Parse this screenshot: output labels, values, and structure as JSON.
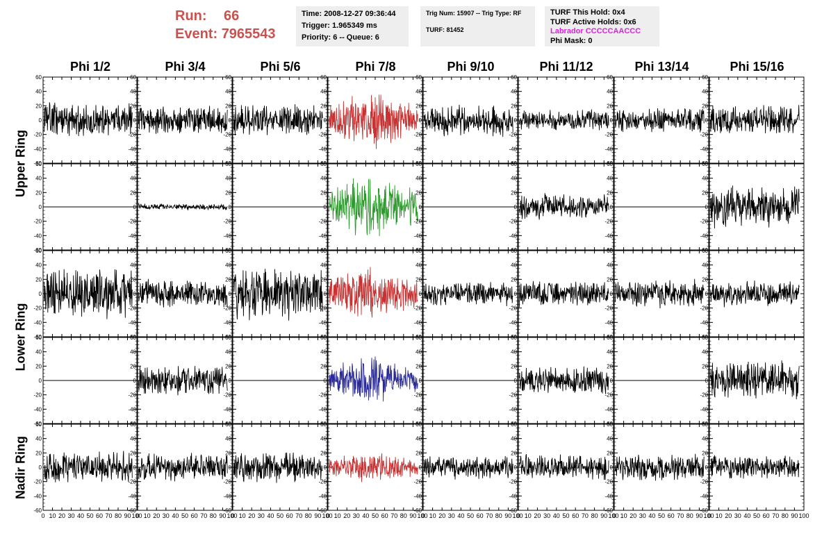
{
  "header": {
    "run_label": "Run:",
    "run_value": "66",
    "event_label": "Event:",
    "event_value": "7965543"
  },
  "info_time": {
    "time": "Time: 2008-12-27 09:36:44",
    "trigger": "Trigger: 1.965349 ms",
    "priority": "Priority: 6 -- Queue: 6"
  },
  "info_trig": {
    "trig": "Trig Num: 15907 -- Trig Type: RF",
    "turf": "TURF: 81452"
  },
  "info_turf": {
    "this_hold": "TURF This Hold: 0x4",
    "active_holds": "TURF Active Holds: 0x6",
    "labrador": "Labrador CCCCCAACCC",
    "phi_mask": "Phi Mask: 0"
  },
  "colors": {
    "black": "#000000",
    "red": "#c83232",
    "green": "#2a9a2a",
    "blue": "#2a2a96",
    "run_text": "#c9524f",
    "labrador": "#e020e0"
  },
  "chart_data": {
    "type": "line",
    "columns": [
      "Phi 1/2",
      "Phi 3/4",
      "Phi 5/6",
      "Phi 7/8",
      "Phi 9/10",
      "Phi 11/12",
      "Phi 13/14",
      "Phi 15/16"
    ],
    "row_groups": [
      {
        "label": "Upper Ring",
        "rows": [
          0,
          1
        ]
      },
      {
        "label": "Lower Ring",
        "rows": [
          2,
          3
        ]
      },
      {
        "label": "Nadir Ring",
        "rows": [
          4
        ]
      }
    ],
    "xlim": [
      0,
      100
    ],
    "ylim": [
      -60,
      60
    ],
    "x_ticks": [
      0,
      10,
      20,
      30,
      40,
      50,
      60,
      70,
      80,
      90,
      100
    ],
    "y_ticks": [
      -60,
      -40,
      -20,
      0,
      20,
      40,
      60
    ],
    "panels": [
      [
        {
          "color": "black",
          "amp": 16,
          "seed": 11
        },
        {
          "color": "black",
          "amp": 14,
          "seed": 12
        },
        {
          "color": "black",
          "amp": 15,
          "seed": 13
        },
        {
          "color": "red",
          "amp": 26,
          "seed": 14,
          "env": true
        },
        {
          "color": "black",
          "amp": 15,
          "seed": 15
        },
        {
          "color": "black",
          "amp": 10,
          "seed": 16
        },
        {
          "color": "black",
          "amp": 12,
          "seed": 17
        },
        {
          "color": "black",
          "amp": 14,
          "seed": 18
        }
      ],
      [
        {
          "color": "black",
          "amp": 0,
          "seed": 21
        },
        {
          "color": "black",
          "amp": 3,
          "seed": 22
        },
        {
          "color": "black",
          "amp": 0,
          "seed": 23
        },
        {
          "color": "green",
          "amp": 30,
          "seed": 24,
          "env": true
        },
        {
          "color": "black",
          "amp": 0,
          "seed": 25
        },
        {
          "color": "black",
          "amp": 12,
          "seed": 26
        },
        {
          "color": "black",
          "amp": 0,
          "seed": 27
        },
        {
          "color": "black",
          "amp": 20,
          "seed": 28
        }
      ],
      [
        {
          "color": "black",
          "amp": 24,
          "seed": 31
        },
        {
          "color": "black",
          "amp": 13,
          "seed": 32
        },
        {
          "color": "black",
          "amp": 24,
          "seed": 33
        },
        {
          "color": "red",
          "amp": 24,
          "seed": 34,
          "env": true
        },
        {
          "color": "black",
          "amp": 12,
          "seed": 35
        },
        {
          "color": "black",
          "amp": 12,
          "seed": 36
        },
        {
          "color": "black",
          "amp": 13,
          "seed": 37
        },
        {
          "color": "black",
          "amp": 12,
          "seed": 38
        }
      ],
      [
        {
          "color": "black",
          "amp": 0,
          "seed": 41
        },
        {
          "color": "black",
          "amp": 14,
          "seed": 42
        },
        {
          "color": "black",
          "amp": 0,
          "seed": 43
        },
        {
          "color": "blue",
          "amp": 22,
          "seed": 44,
          "env": true
        },
        {
          "color": "black",
          "amp": 0,
          "seed": 45
        },
        {
          "color": "black",
          "amp": 13,
          "seed": 46
        },
        {
          "color": "black",
          "amp": 0,
          "seed": 47
        },
        {
          "color": "black",
          "amp": 18,
          "seed": 48
        }
      ],
      [
        {
          "color": "black",
          "amp": 15,
          "seed": 51
        },
        {
          "color": "black",
          "amp": 13,
          "seed": 52
        },
        {
          "color": "black",
          "amp": 14,
          "seed": 53
        },
        {
          "color": "red",
          "amp": 15,
          "seed": 54,
          "env": true
        },
        {
          "color": "black",
          "amp": 11,
          "seed": 55
        },
        {
          "color": "black",
          "amp": 12,
          "seed": 56
        },
        {
          "color": "black",
          "amp": 13,
          "seed": 57
        },
        {
          "color": "black",
          "amp": 11,
          "seed": 58
        }
      ]
    ]
  }
}
